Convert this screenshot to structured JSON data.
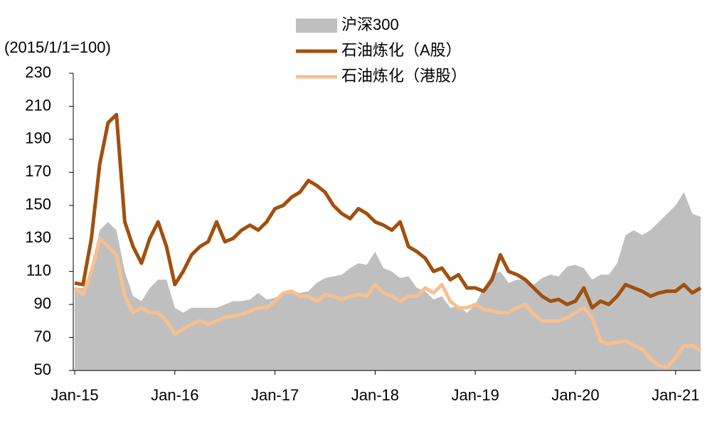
{
  "chart_data": {
    "type": "line",
    "y_label": "(2015/1/1=100)",
    "x": [
      "2015-01",
      "2015-02",
      "2015-03",
      "2015-04",
      "2015-05",
      "2015-06",
      "2015-07",
      "2015-08",
      "2015-09",
      "2015-10",
      "2015-11",
      "2015-12",
      "2016-01",
      "2016-02",
      "2016-03",
      "2016-04",
      "2016-05",
      "2016-06",
      "2016-07",
      "2016-08",
      "2016-09",
      "2016-10",
      "2016-11",
      "2016-12",
      "2017-01",
      "2017-02",
      "2017-03",
      "2017-04",
      "2017-05",
      "2017-06",
      "2017-07",
      "2017-08",
      "2017-09",
      "2017-10",
      "2017-11",
      "2017-12",
      "2018-01",
      "2018-02",
      "2018-03",
      "2018-04",
      "2018-05",
      "2018-06",
      "2018-07",
      "2018-08",
      "2018-09",
      "2018-10",
      "2018-11",
      "2018-12",
      "2019-01",
      "2019-02",
      "2019-03",
      "2019-04",
      "2019-05",
      "2019-06",
      "2019-07",
      "2019-08",
      "2019-09",
      "2019-10",
      "2019-11",
      "2019-12",
      "2020-01",
      "2020-02",
      "2020-03",
      "2020-04",
      "2020-05",
      "2020-06",
      "2020-07",
      "2020-08",
      "2020-09",
      "2020-10",
      "2020-11",
      "2020-12",
      "2021-01",
      "2021-02",
      "2021-03",
      "2021-04"
    ],
    "series": [
      {
        "name": "沪深300",
        "style": "area",
        "color": "#bfbfbf",
        "values": [
          100,
          100,
          110,
          135,
          140,
          135,
          110,
          95,
          92,
          100,
          105,
          105,
          88,
          85,
          88,
          88,
          88,
          88,
          90,
          92,
          92,
          93,
          97,
          93,
          94,
          97,
          98,
          97,
          98,
          103,
          106,
          107,
          108,
          112,
          115,
          114,
          122,
          112,
          110,
          106,
          107,
          100,
          98,
          93,
          95,
          88,
          89,
          85,
          90,
          100,
          108,
          110,
          103,
          105,
          105,
          102,
          106,
          108,
          107,
          113,
          114,
          112,
          105,
          108,
          108,
          115,
          132,
          135,
          132,
          135,
          140,
          145,
          150,
          158,
          145,
          143
        ]
      },
      {
        "name": "石油炼化（A股）",
        "style": "line",
        "color": "#a0500f",
        "values": [
          103,
          102,
          130,
          175,
          200,
          205,
          140,
          125,
          115,
          130,
          140,
          125,
          102,
          110,
          120,
          125,
          128,
          140,
          128,
          130,
          135,
          138,
          135,
          140,
          148,
          150,
          155,
          158,
          165,
          162,
          158,
          150,
          145,
          142,
          148,
          145,
          140,
          138,
          135,
          140,
          125,
          122,
          118,
          110,
          112,
          105,
          108,
          100,
          100,
          98,
          105,
          120,
          110,
          108,
          105,
          100,
          95,
          92,
          93,
          90,
          92,
          100,
          88,
          92,
          90,
          95,
          102,
          100,
          98,
          95,
          97,
          98,
          98,
          102,
          97,
          100
        ]
      },
      {
        "name": "石油炼化（港股）",
        "style": "line",
        "color": "#f8c08f",
        "values": [
          100,
          96,
          110,
          130,
          125,
          120,
          95,
          85,
          88,
          85,
          85,
          80,
          72,
          75,
          78,
          80,
          78,
          80,
          82,
          83,
          84,
          86,
          88,
          88,
          92,
          97,
          98,
          95,
          95,
          92,
          96,
          95,
          93,
          95,
          96,
          95,
          102,
          97,
          95,
          92,
          95,
          95,
          100,
          97,
          102,
          92,
          88,
          88,
          90,
          87,
          86,
          85,
          85,
          88,
          90,
          84,
          80,
          80,
          80,
          82,
          85,
          88,
          82,
          68,
          66,
          67,
          68,
          65,
          63,
          57,
          53,
          52,
          58,
          65,
          65,
          62
        ]
      }
    ],
    "ylim": [
      50,
      230
    ],
    "yticks": [
      50,
      70,
      90,
      110,
      130,
      150,
      170,
      190,
      210,
      230
    ],
    "xticks": [
      {
        "value": "2015-01",
        "label": "Jan-15"
      },
      {
        "value": "2016-01",
        "label": "Jan-16"
      },
      {
        "value": "2017-01",
        "label": "Jan-17"
      },
      {
        "value": "2018-01",
        "label": "Jan-18"
      },
      {
        "value": "2019-01",
        "label": "Jan-19"
      },
      {
        "value": "2020-01",
        "label": "Jan-20"
      },
      {
        "value": "2021-01",
        "label": "Jan-21"
      }
    ]
  }
}
